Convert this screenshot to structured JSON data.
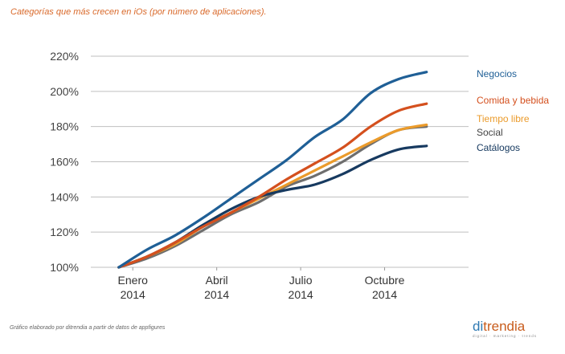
{
  "title": "Categorías que más crecen en iOs (por número de aplicaciones).",
  "footnote": "Gráfico elaborado por ditrendia a partir de datos de appfigures",
  "logo": {
    "brand_prefix": "di",
    "brand_suffix": "trendia",
    "tagline": "digital · marketing · trends"
  },
  "colors": {
    "title": "#d9692a",
    "grid": "#bfbfbf"
  },
  "chart_data": {
    "type": "line",
    "title": "Categorías que más crecen en iOs (por número de aplicaciones).",
    "xlabel": "",
    "ylabel": "",
    "ylim": [
      100,
      220
    ],
    "y_ticks": [
      "100%",
      "120%",
      "140%",
      "160%",
      "180%",
      "200%",
      "220%"
    ],
    "y_tick_values": [
      100,
      120,
      140,
      160,
      180,
      200,
      220
    ],
    "x_ticks": [
      {
        "month": 0.5,
        "line1": "Enero",
        "line2": "2014"
      },
      {
        "month": 3.5,
        "line1": "Abril",
        "line2": "2014"
      },
      {
        "month": 6.5,
        "line1": "Julio",
        "line2": "2014"
      },
      {
        "month": 9.5,
        "line1": "Octubre",
        "line2": "2014"
      }
    ],
    "xlim": [
      -1.0,
      12.5
    ],
    "grid": true,
    "legend_position": "right",
    "series": [
      {
        "name": "Negocios",
        "color": "#1f5f96",
        "x": [
          0,
          1,
          2,
          3,
          4,
          5,
          6,
          7,
          8,
          9,
          10,
          11
        ],
        "values": [
          100,
          110,
          118,
          128,
          139,
          150,
          161,
          174,
          184,
          199,
          207,
          211
        ]
      },
      {
        "name": "Comida y bebida",
        "color": "#d4501e",
        "x": [
          0,
          1,
          2,
          3,
          4,
          5,
          6,
          7,
          8,
          9,
          10,
          11
        ],
        "values": [
          100,
          106,
          114,
          123,
          131,
          140,
          150,
          159,
          168,
          180,
          189,
          193
        ]
      },
      {
        "name": "Tiempo libre",
        "color": "#eb9b2b",
        "x": [
          0,
          1,
          2,
          3,
          4,
          5,
          6,
          7,
          8,
          9,
          10,
          11
        ],
        "values": [
          100,
          106,
          113,
          123,
          131,
          139,
          147,
          155,
          163,
          171,
          178,
          181
        ]
      },
      {
        "name": "Social",
        "color": "#6e6e6e",
        "x": [
          0,
          1,
          2,
          3,
          4,
          5,
          6,
          7,
          8,
          9,
          10,
          11
        ],
        "values": [
          100,
          105,
          112,
          121,
          130,
          137,
          146,
          152,
          160,
          170,
          178,
          180
        ]
      },
      {
        "name": "Catálogos",
        "color": "#173a60",
        "x": [
          0,
          1,
          2,
          3,
          4,
          5,
          6,
          7,
          8,
          9,
          10,
          11
        ],
        "values": [
          100,
          106,
          114,
          124,
          133,
          140,
          144,
          147,
          153,
          161,
          167,
          169
        ]
      }
    ]
  }
}
